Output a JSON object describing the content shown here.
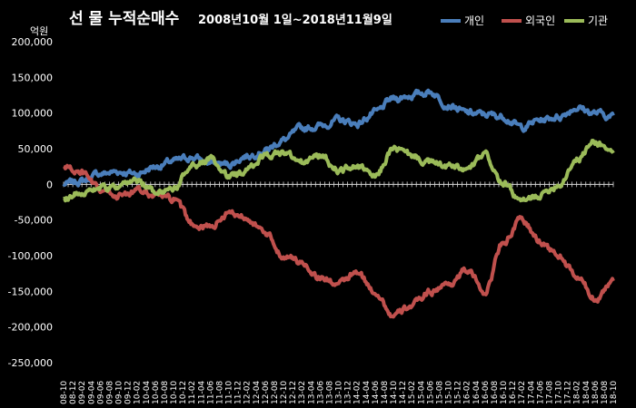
{
  "chart_data": {
    "type": "line",
    "title": "선 물 누적순매수",
    "subtitle": "2008년10월 1일~2018년11월9일",
    "ylabel": "억원",
    "ylim": [
      -250000,
      200000
    ],
    "yticks": [
      "200,000",
      "150,000",
      "100,000",
      "50,000",
      "0",
      "-50,000",
      "-100,000",
      "-150,000",
      "-200,000",
      "-250,000"
    ],
    "grid": false,
    "legend_position": "top-right",
    "x": [
      "08-10",
      "09-02",
      "09-06",
      "09-10",
      "10-02",
      "10-06",
      "10-10",
      "11-02",
      "11-06",
      "11-10",
      "12-02",
      "12-06",
      "12-10",
      "13-02",
      "13-06",
      "13-10",
      "14-02",
      "14-06",
      "14-10",
      "15-02",
      "15-06",
      "15-10",
      "16-02",
      "16-06",
      "16-10",
      "17-02",
      "17-06",
      "17-10",
      "18-02",
      "18-06",
      "18-10"
    ],
    "xtick_labels": [
      "08-10",
      "08-12",
      "09-02",
      "09-04",
      "09-06",
      "09-08",
      "09-10",
      "09-12",
      "10-02",
      "10-04",
      "10-06",
      "10-08",
      "10-10",
      "10-12",
      "11-02",
      "11-04",
      "11-06",
      "11-08",
      "11-10",
      "11-12",
      "12-02",
      "12-04",
      "12-06",
      "12-08",
      "12-10",
      "12-12",
      "13-02",
      "13-04",
      "13-06",
      "13-08",
      "13-10",
      "13-12",
      "14-02",
      "14-04",
      "14-06",
      "14-08",
      "14-10",
      "14-12",
      "15-02",
      "15-04",
      "15-06",
      "15-08",
      "15-10",
      "15-12",
      "16-02",
      "16-04",
      "16-06",
      "16-08",
      "16-10",
      "16-12",
      "17-02",
      "17-04",
      "17-06",
      "17-08",
      "17-10",
      "17-12",
      "18-02",
      "18-04",
      "18-06",
      "18-08",
      "18-10"
    ],
    "series": [
      {
        "name": "개인",
        "color": "#4a7ebb",
        "values": [
          0,
          5000,
          15000,
          18000,
          15000,
          25000,
          32000,
          38000,
          30000,
          28000,
          40000,
          48000,
          62000,
          78000,
          82000,
          90000,
          85000,
          100000,
          120000,
          125000,
          130000,
          112000,
          100000,
          98000,
          95000,
          80000,
          90000,
          95000,
          108000,
          100000,
          95000
        ]
      },
      {
        "name": "외국인",
        "color": "#c0504d",
        "values": [
          25000,
          15000,
          -10000,
          -15000,
          -10000,
          -15000,
          -22000,
          -55000,
          -60000,
          -40000,
          -45000,
          -70000,
          -100000,
          -110000,
          -130000,
          -140000,
          -125000,
          -150000,
          -185000,
          -170000,
          -150000,
          -140000,
          -120000,
          -150000,
          -80000,
          -50000,
          -80000,
          -100000,
          -130000,
          -160000,
          -135000
        ]
      },
      {
        "name": "기관",
        "color": "#9bbb59",
        "values": [
          -20000,
          -10000,
          -5000,
          -5000,
          5000,
          -10000,
          -5000,
          25000,
          35000,
          10000,
          20000,
          40000,
          45000,
          30000,
          40000,
          20000,
          25000,
          10000,
          50000,
          40000,
          30000,
          25000,
          20000,
          40000,
          0,
          -25000,
          -15000,
          0,
          35000,
          60000,
          45000
        ]
      }
    ]
  }
}
